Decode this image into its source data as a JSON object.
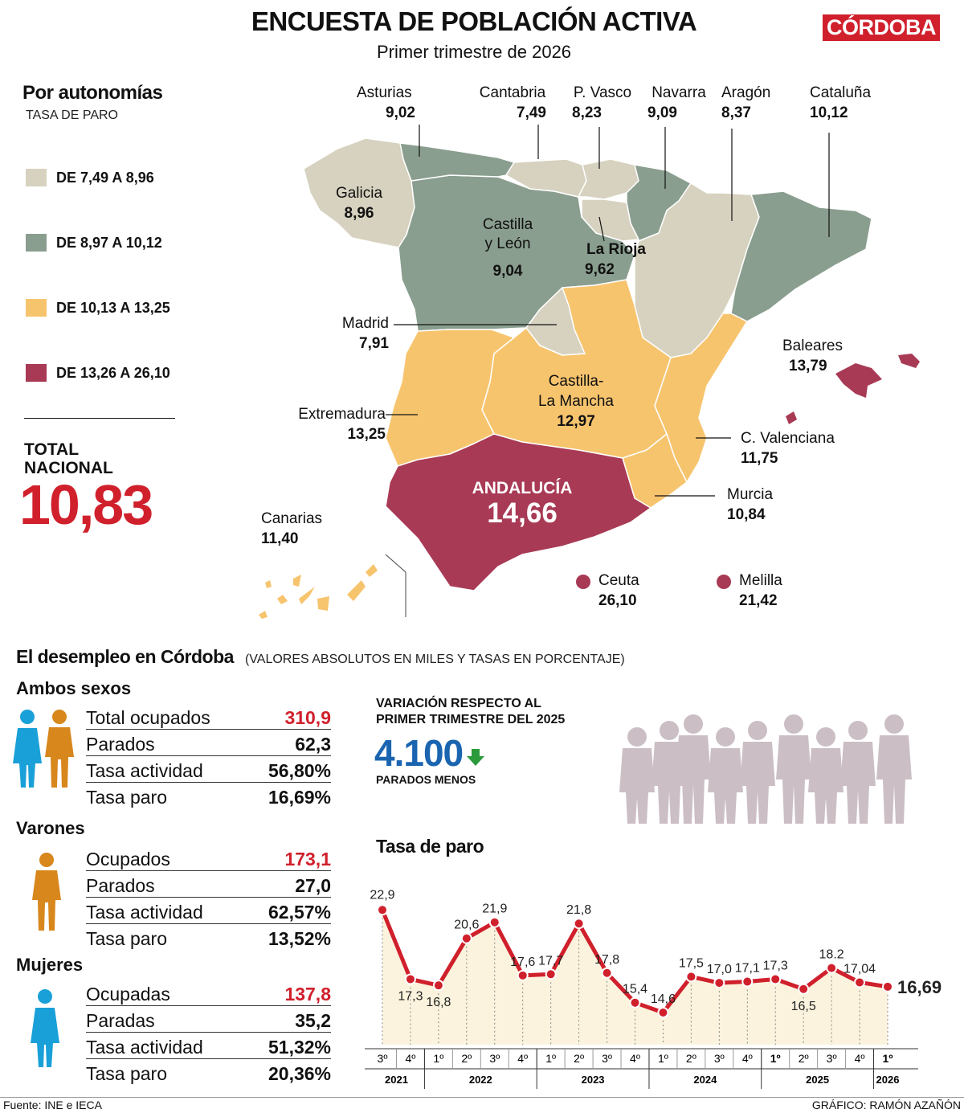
{
  "header": {
    "title": "ENCUESTA DE POBLACIÓN ACTIVA",
    "subtitle": "Primer trimestre de 2026",
    "brand": "CÓRDOBA"
  },
  "map_section": {
    "title": "Por autonomías",
    "subtitle": "TASA DE PARO",
    "legend": [
      {
        "label": "DE 7,49 A 8,96",
        "color": "#d6d2bf"
      },
      {
        "label": "DE 8,97 A 10,12",
        "color": "#8a9e8f"
      },
      {
        "label": "DE 10,13 A 13,25",
        "color": "#f7c46e"
      },
      {
        "label": "DE 13,26 A 26,10",
        "color": "#a83a55"
      }
    ],
    "total_label_1": "TOTAL",
    "total_label_2": "NACIONAL",
    "total_value": "10,83",
    "regions": {
      "asturias": {
        "name": "Asturias",
        "value": "9,02"
      },
      "cantabria": {
        "name": "Cantabria",
        "value": "7,49"
      },
      "pvasco": {
        "name": "P. Vasco",
        "value": "8,23"
      },
      "navarra": {
        "name": "Navarra",
        "value": "9,09"
      },
      "aragon": {
        "name": "Aragón",
        "value": "8,37"
      },
      "cataluna": {
        "name": "Cataluña",
        "value": "10,12"
      },
      "galicia": {
        "name": "Galicia",
        "value": "8,96"
      },
      "castillaleon_1": "Castilla",
      "castillaleon_2": "y León",
      "castillaleon_value": "9,04",
      "rioja": {
        "name": "La Rioja",
        "value": "9,62"
      },
      "madrid": {
        "name": "Madrid",
        "value": "7,91"
      },
      "baleares": {
        "name": "Baleares",
        "value": "13,79"
      },
      "clm_1": "Castilla-",
      "clm_2": "La Mancha",
      "clm_value": "12,97",
      "extremadura": {
        "name": "Extremadura",
        "value": "13,25"
      },
      "valenciana": {
        "name": "C. Valenciana",
        "value": "11,75"
      },
      "andalucia": {
        "name": "ANDALUCÍA",
        "value": "14,66"
      },
      "murcia": {
        "name": "Murcia",
        "value": "10,84"
      },
      "canarias": {
        "name": "Canarias",
        "value": "11,40"
      },
      "ceuta": {
        "name": "Ceuta",
        "value": "26,10"
      },
      "melilla": {
        "name": "Melilla",
        "value": "21,42"
      }
    }
  },
  "cordoba": {
    "title": "El desempleo en Córdoba",
    "note": "(VALORES ABSOLUTOS EN MILES Y TASAS EN PORCENTAJE)",
    "groups": [
      {
        "title": "Ambos sexos",
        "rows": [
          {
            "label": "Total ocupados",
            "value": "310,9"
          },
          {
            "label": "Parados",
            "value": "62,3"
          },
          {
            "label": "Tasa actividad",
            "value": "56,80%"
          },
          {
            "label": "Tasa paro",
            "value": "16,69%"
          }
        ]
      },
      {
        "title": "Varones",
        "rows": [
          {
            "label": "Ocupados",
            "value": "173,1"
          },
          {
            "label": "Parados",
            "value": "27,0"
          },
          {
            "label": "Tasa actividad",
            "value": "62,57%"
          },
          {
            "label": "Tasa paro",
            "value": "13,52%"
          }
        ]
      },
      {
        "title": "Mujeres",
        "rows": [
          {
            "label": "Ocupadas",
            "value": "137,8"
          },
          {
            "label": "Paradas",
            "value": "35,2"
          },
          {
            "label": "Tasa actividad",
            "value": "51,32%"
          },
          {
            "label": "Tasa paro",
            "value": "20,36%"
          }
        ]
      }
    ],
    "variation": {
      "title_1": "VARIACIÓN RESPECTO AL",
      "title_2": "PRIMER TRIMESTRE DEL 2025",
      "value": "4.100",
      "caption": "PARADOS MENOS"
    }
  },
  "colors": {
    "accent_red": "#d0202c",
    "blue": "#1a64b0",
    "man": "#d8871c",
    "woman": "#1aa0d8",
    "down_arrow": "#2a9a3a"
  },
  "chart_data": {
    "type": "line",
    "title": "Tasa de paro",
    "x": [
      "3º",
      "4º",
      "1º",
      "2º",
      "3º",
      "4º",
      "1º",
      "2º",
      "3º",
      "4º",
      "1º",
      "2º",
      "3º",
      "4º",
      "1º",
      "2º",
      "3º",
      "4º",
      "1º"
    ],
    "years": [
      {
        "label": "2021",
        "count": 2
      },
      {
        "label": "2022",
        "count": 4
      },
      {
        "label": "2023",
        "count": 4
      },
      {
        "label": "2024",
        "count": 4
      },
      {
        "label": "2025",
        "count": 4
      },
      {
        "label": "2026",
        "count": 1
      }
    ],
    "values": [
      22.9,
      17.3,
      16.8,
      20.6,
      21.9,
      17.6,
      17.7,
      21.8,
      17.8,
      15.4,
      14.6,
      17.5,
      17.0,
      17.1,
      17.3,
      16.5,
      18.2,
      17.04,
      16.69
    ],
    "labels": [
      "22,9",
      "17,3",
      "16,8",
      "20,6",
      "21,9",
      "17,6",
      "17,7",
      "21,8",
      "17,8",
      "15,4",
      "14,6",
      "17,5",
      "17,0",
      "17,1",
      "17,3",
      "16,5",
      "18.2",
      "17,04",
      "16,69"
    ],
    "ylim": [
      12,
      25
    ]
  },
  "footer": {
    "source": "Fuente: INE e IECA",
    "credit": "GRÁFICO: RAMÓN AZAÑÓN"
  }
}
